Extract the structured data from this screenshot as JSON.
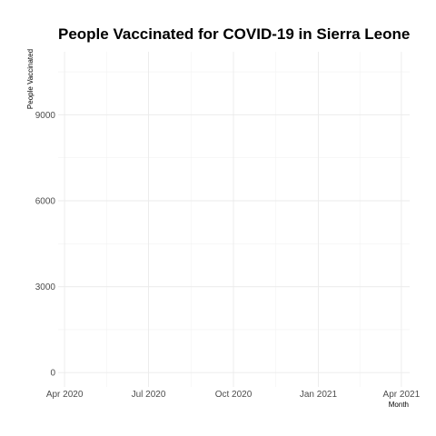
{
  "chart_data": {
    "type": "line",
    "title": "People Vaccinated for COVID-19 in Sierra Leone",
    "xlabel": "Month",
    "ylabel": "People Vaccinated",
    "x_ticks": [
      "Apr 2020",
      "Jul 2020",
      "Oct 2020",
      "Jan 2021",
      "Apr 2021"
    ],
    "x_range": [
      "2020-03-25",
      "2021-04-10"
    ],
    "y_ticks": [
      0,
      3000,
      6000,
      9000
    ],
    "ylim": [
      -500,
      11200
    ],
    "grid": true,
    "series": [
      {
        "values": []
      }
    ]
  }
}
